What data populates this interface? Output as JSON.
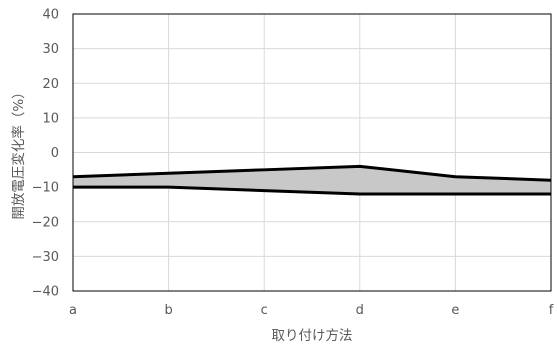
{
  "chart_data": {
    "type": "area",
    "title": "",
    "xlabel": "取り付け方法",
    "ylabel": "開放電圧変化率（%）",
    "categories": [
      "a",
      "b",
      "c",
      "d",
      "e",
      "f"
    ],
    "series": [
      {
        "values": [
          -7,
          -6,
          -5,
          -4,
          -7,
          -8
        ]
      },
      {
        "values": [
          -10,
          -10,
          -11,
          -12,
          -12,
          -12
        ]
      }
    ],
    "band_between_series": true,
    "ylim": [
      -40,
      40
    ],
    "yticks": [
      40,
      30,
      20,
      10,
      0,
      -10,
      -20,
      -30,
      -40
    ],
    "ytick_labels": [
      "40",
      "30",
      "20",
      "10",
      "0",
      "−10",
      "−20",
      "−30",
      "−40"
    ],
    "grid": true,
    "legend": "none",
    "colors": {
      "line": "#000000",
      "band_fill": "#c8c8c8",
      "grid": "#d9d9d9",
      "frame": "#000000",
      "text": "#595959"
    }
  }
}
